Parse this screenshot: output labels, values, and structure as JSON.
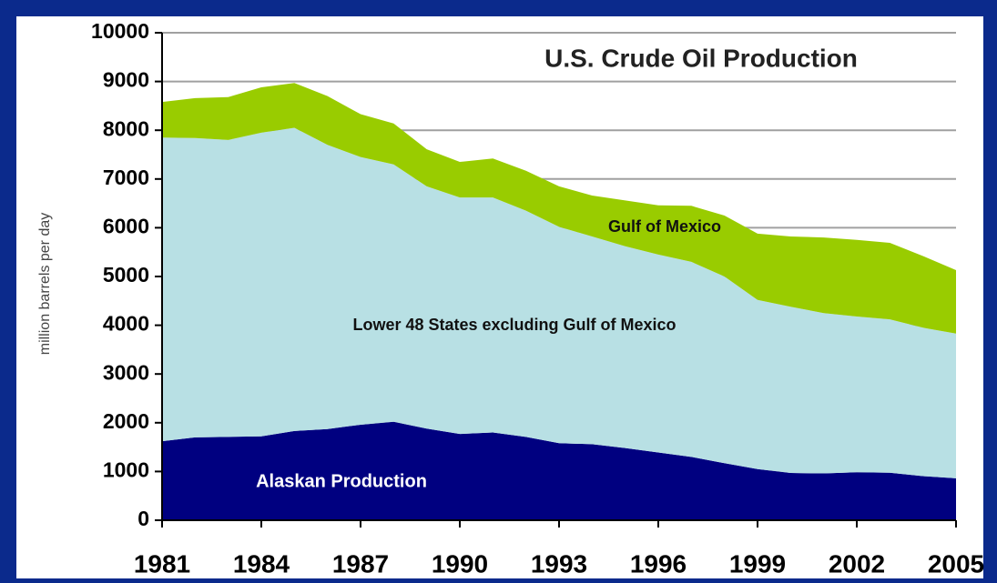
{
  "chart_data": {
    "type": "stacked-area",
    "title": "U.S. Crude Oil Production",
    "y_label": "million barrels per day",
    "x": [
      1981,
      1982,
      1983,
      1984,
      1985,
      1986,
      1987,
      1988,
      1989,
      1990,
      1991,
      1992,
      1993,
      1994,
      1995,
      1996,
      1997,
      1998,
      1999,
      2000,
      2001,
      2002,
      2003,
      2004,
      2005
    ],
    "series": [
      {
        "name": "Alaskan Production",
        "color": "#000080",
        "values": [
          1620,
          1700,
          1710,
          1720,
          1830,
          1870,
          1960,
          2020,
          1880,
          1770,
          1800,
          1710,
          1580,
          1560,
          1480,
          1390,
          1300,
          1170,
          1050,
          970,
          960,
          985,
          975,
          905,
          860
        ]
      },
      {
        "name": "Lower 48 States excluding Gulf of Mexico",
        "color": "#b8e0e4",
        "values": [
          6230,
          6140,
          6090,
          6230,
          6220,
          5830,
          5490,
          5280,
          4970,
          4850,
          4820,
          4640,
          4440,
          4260,
          4140,
          4060,
          4000,
          3830,
          3470,
          3410,
          3290,
          3195,
          3145,
          3045,
          2970
        ]
      },
      {
        "name": "Gulf of Mexico",
        "color": "#99cc00",
        "values": [
          730,
          820,
          880,
          930,
          920,
          1000,
          880,
          840,
          760,
          730,
          800,
          820,
          830,
          840,
          940,
          1010,
          1150,
          1250,
          1360,
          1440,
          1550,
          1570,
          1570,
          1470,
          1300
        ]
      }
    ],
    "xlim": [
      1981,
      2005
    ],
    "xticks": [
      1981,
      1984,
      1987,
      1990,
      1993,
      1996,
      1999,
      2002,
      2005
    ],
    "ylim": [
      0,
      10000
    ],
    "yticks": [
      0,
      1000,
      2000,
      3000,
      4000,
      5000,
      6000,
      7000,
      8000,
      9000,
      10000
    ],
    "grid": true
  }
}
